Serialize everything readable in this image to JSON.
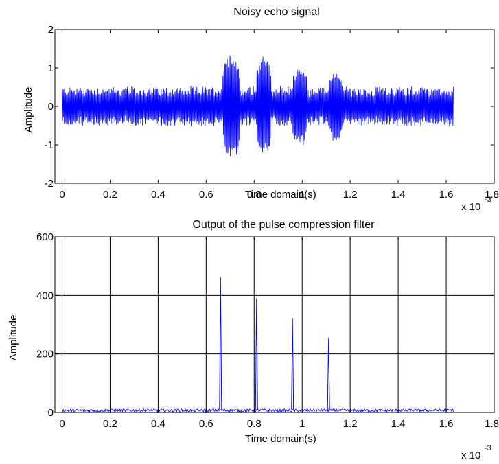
{
  "chart_data": [
    {
      "type": "line",
      "title": "Noisy echo signal",
      "xlabel": "Time  domain(s)",
      "ylabel": "Amplitude",
      "x_exponent_base": "x 10",
      "x_exponent_power": "-3",
      "xlim": [
        -0.03,
        1.8
      ],
      "ylim": [
        -2,
        2
      ],
      "xticks": [
        0,
        0.2,
        0.4,
        0.6,
        0.8,
        1,
        1.2,
        1.4,
        1.6,
        1.8
      ],
      "xtick_labels": [
        "0",
        "0.2",
        "0.4",
        "0.6",
        "0.8",
        "1",
        "1.2",
        "1.4",
        "1.6",
        "1.8"
      ],
      "yticks": [
        -2,
        -1,
        0,
        1,
        2
      ],
      "ytick_labels": [
        "-2",
        "-1",
        "0",
        "1",
        "2"
      ],
      "grid": false,
      "signal_range_x": [
        0,
        1.63
      ],
      "noise_amplitude": 0.5,
      "echo_bursts": [
        {
          "start": 0.67,
          "end": 0.74,
          "peak": 1.4
        },
        {
          "start": 0.81,
          "end": 0.87,
          "peak": 1.3
        },
        {
          "start": 0.96,
          "end": 1.02,
          "peak": 1.05
        },
        {
          "start": 1.11,
          "end": 1.17,
          "peak": 0.9
        }
      ],
      "color": "#0000ff"
    },
    {
      "type": "line",
      "title": "Output of the pulse compression filter",
      "xlabel": "Time  domain(s)",
      "ylabel": "Amplitude",
      "x_exponent_base": "x 10",
      "x_exponent_power": "-3",
      "xlim": [
        -0.03,
        1.8
      ],
      "ylim": [
        0,
        600
      ],
      "xticks": [
        0,
        0.2,
        0.4,
        0.6,
        0.8,
        1,
        1.2,
        1.4,
        1.6,
        1.8
      ],
      "xtick_labels": [
        "0",
        "0.2",
        "0.4",
        "0.6",
        "0.8",
        "1",
        "1.2",
        "1.4",
        "1.6",
        "1.8"
      ],
      "yticks": [
        0,
        200,
        400,
        600
      ],
      "ytick_labels": [
        "0",
        "200",
        "400",
        "600"
      ],
      "grid": true,
      "signal_range_x": [
        0,
        1.63
      ],
      "noise_floor": 10,
      "peaks": [
        {
          "x": 0.66,
          "y": 462
        },
        {
          "x": 0.81,
          "y": 390
        },
        {
          "x": 0.96,
          "y": 320
        },
        {
          "x": 1.11,
          "y": 255
        }
      ],
      "color": "#0000ff"
    }
  ]
}
